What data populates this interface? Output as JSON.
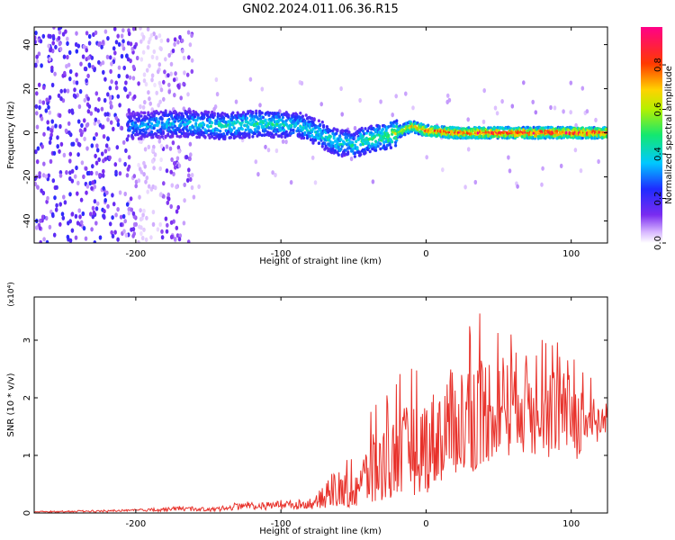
{
  "figure": {
    "title": "GN02.2024.011.06.36.R15"
  },
  "chart_data": [
    {
      "type": "heatmap",
      "title": "GN02.2024.011.06.36.R15",
      "xlabel": "Height of straight line (km)",
      "ylabel": "Frequency (Hz)",
      "xlim": [
        -270,
        125
      ],
      "ylim": [
        -50,
        48
      ],
      "xticks": [
        -200,
        -100,
        0,
        100
      ],
      "xtick_labels": [
        "-200",
        "-100",
        "0",
        "100"
      ],
      "yticks": [
        -40,
        -20,
        0,
        20,
        40
      ],
      "ytick_labels": [
        "-40",
        "-20",
        "0",
        "20",
        "40"
      ],
      "colorbar": {
        "label": "Normalized spectral amplitude",
        "range": [
          0,
          0.97
        ],
        "ticks": [
          0.0,
          0.2,
          0.4,
          0.6,
          0.8
        ],
        "tick_labels": [
          "0.0",
          "0.2",
          "0.4",
          "0.6",
          "0.8"
        ],
        "colormap": "rainbow (white-violet-blue-cyan-green-yellow-red-magenta)"
      },
      "ridge": {
        "description": "Strong spectral ridge near 0 Hz",
        "height_km": [
          -200,
          -180,
          -160,
          -140,
          -120,
          -100,
          -85,
          -75,
          -65,
          -60,
          -55,
          -50,
          -45,
          -40,
          -30,
          -20,
          -10,
          0,
          20,
          40,
          60,
          80,
          100,
          120
        ],
        "frequency_hz": [
          3,
          4,
          4,
          3,
          4,
          4,
          3,
          0,
          -3,
          -5,
          -4,
          -6,
          -4,
          -3,
          -2,
          0,
          3,
          1,
          0,
          0,
          0,
          0,
          0,
          0
        ],
        "peak_amplitude": [
          0.35,
          0.4,
          0.42,
          0.45,
          0.48,
          0.45,
          0.42,
          0.45,
          0.45,
          0.45,
          0.45,
          0.45,
          0.5,
          0.5,
          0.55,
          0.65,
          0.75,
          0.85,
          0.9,
          0.9,
          0.9,
          0.9,
          0.9,
          0.9
        ]
      },
      "grid": false
    },
    {
      "type": "line",
      "xlabel": "Height of straight line (km)",
      "ylabel": "SNR (10 * v/v)",
      "y_multiplier": "(x10⁴)",
      "xlim": [
        -270,
        125
      ],
      "ylim": [
        0,
        3.75
      ],
      "xticks": [
        -200,
        -100,
        0,
        100
      ],
      "xtick_labels": [
        "-200",
        "-100",
        "0",
        "100"
      ],
      "yticks": [
        0,
        1,
        2,
        3
      ],
      "ytick_labels": [
        "0",
        "1",
        "2",
        "3"
      ],
      "color": "#e8322b",
      "series": [
        {
          "x": [
            -270,
            -250,
            -230,
            -210,
            -190,
            -170,
            -150,
            -135,
            -125,
            -115,
            -105,
            -95,
            -85,
            -75,
            -65,
            -55,
            -45,
            -35,
            -25,
            -15,
            -5,
            5,
            15,
            25,
            35,
            45,
            55,
            65,
            75,
            85,
            95,
            105,
            115,
            125
          ],
          "y": [
            0.02,
            0.02,
            0.03,
            0.04,
            0.05,
            0.08,
            0.06,
            0.1,
            0.15,
            0.12,
            0.15,
            0.15,
            0.15,
            0.2,
            0.3,
            0.4,
            0.55,
            0.75,
            0.9,
            1.05,
            1.15,
            1.25,
            1.55,
            1.65,
            1.75,
            1.85,
            1.95,
            2.0,
            1.95,
            1.85,
            1.75,
            1.65,
            1.55,
            1.75
          ],
          "envelope_upper": [
            0.03,
            0.04,
            0.05,
            0.06,
            0.08,
            0.12,
            0.1,
            0.15,
            0.22,
            0.2,
            0.22,
            0.25,
            0.25,
            0.4,
            0.7,
            1.0,
            1.4,
            2.1,
            2.2,
            2.6,
            2.8,
            3.1,
            3.25,
            3.35,
            3.6,
            3.6,
            3.35,
            3.3,
            3.0,
            3.1,
            2.9,
            2.8,
            2.4,
            1.95
          ],
          "envelope_lower": [
            0.01,
            0.01,
            0.01,
            0.02,
            0.02,
            0.03,
            0.02,
            0.04,
            0.06,
            0.05,
            0.06,
            0.06,
            0.06,
            0.07,
            0.08,
            0.1,
            0.12,
            0.15,
            0.25,
            0.35,
            0.45,
            0.55,
            0.65,
            0.55,
            0.75,
            0.85,
            0.9,
            0.95,
            1.0,
            0.95,
            0.85,
            0.9,
            1.05,
            1.45
          ]
        }
      ],
      "grid": false
    }
  ]
}
